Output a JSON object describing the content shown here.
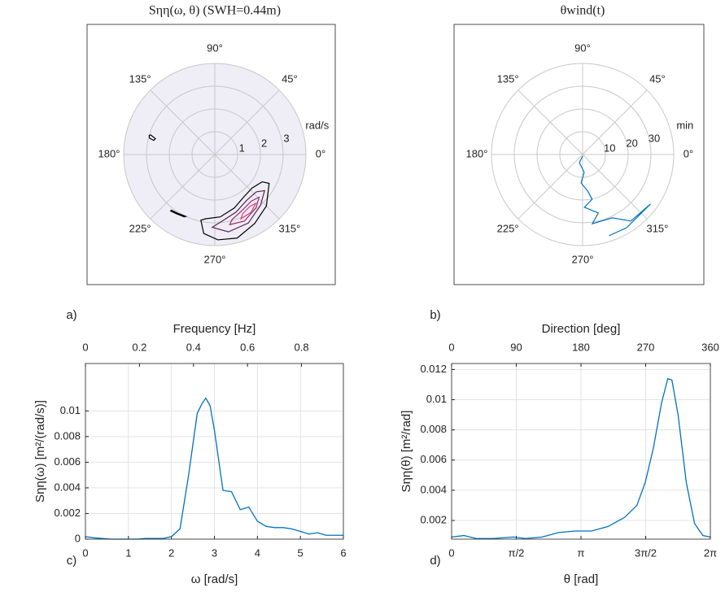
{
  "chart_data": [
    {
      "type": "contour",
      "title": "Sηη(ω, θ) (SWH=0.44m)",
      "panel_label": "a)",
      "rlim": [
        0,
        4
      ],
      "rticks": [
        1,
        2,
        3
      ],
      "r_unit": "rad/s",
      "background": "#efedf6",
      "theta_ticks": [
        {
          "value": 0,
          "label": "0°"
        },
        {
          "value": 45,
          "label": "45°"
        },
        {
          "value": 90,
          "label": "90°"
        },
        {
          "value": 135,
          "label": "135°"
        },
        {
          "value": 180,
          "label": "180°"
        },
        {
          "value": 225,
          "label": "225°"
        },
        {
          "value": 270,
          "label": "270°"
        },
        {
          "value": 315,
          "label": "315°"
        }
      ],
      "contours": [
        {
          "color": "#000000",
          "theta": [
            258,
            262,
            272,
            285,
            300,
            315,
            332,
            330,
            318,
            305,
            290,
            275,
            262
          ],
          "r": [
            2.95,
            3.5,
            3.75,
            3.8,
            3.5,
            3.2,
            2.7,
            2.4,
            2.2,
            2.25,
            2.5,
            2.75,
            2.85
          ]
        },
        {
          "color": "#5a2450",
          "theta": [
            268,
            280,
            296,
            312,
            324,
            318,
            305,
            290,
            276
          ],
          "r": [
            3.2,
            3.45,
            3.35,
            3.0,
            2.7,
            2.45,
            2.45,
            2.7,
            2.95
          ]
        },
        {
          "color": "#9a2d6c",
          "theta": [
            282,
            294,
            308,
            316,
            308,
            295,
            285
          ],
          "r": [
            3.15,
            3.2,
            2.95,
            2.7,
            2.6,
            2.75,
            2.95
          ]
        },
        {
          "color": "#e0407a",
          "theta": [
            292,
            302,
            310,
            304,
            295
          ],
          "r": [
            3.05,
            3.0,
            2.8,
            2.75,
            2.88
          ]
        },
        {
          "color": "#000000",
          "theta": [
            163,
            165,
            167,
            166,
            164
          ],
          "r": [
            2.95,
            2.7,
            2.75,
            2.95,
            3.0
          ]
        },
        {
          "color": "#000000",
          "theta": [
            232,
            238,
            245,
            244,
            237,
            232
          ],
          "r": [
            3.1,
            3.05,
            3.0,
            3.05,
            3.1,
            3.15
          ]
        }
      ]
    },
    {
      "type": "polar",
      "title": "θwind(t)",
      "panel_label": "b)",
      "rlim": [
        0,
        40
      ],
      "rticks": [
        10,
        20,
        30
      ],
      "r_unit": "min",
      "theta_ticks": [
        {
          "value": 0,
          "label": "0°"
        },
        {
          "value": 45,
          "label": "45°"
        },
        {
          "value": 90,
          "label": "90°"
        },
        {
          "value": 135,
          "label": "135°"
        },
        {
          "value": 180,
          "label": "180°"
        },
        {
          "value": 225,
          "label": "225°"
        },
        {
          "value": 270,
          "label": "270°"
        },
        {
          "value": 315,
          "label": "315°"
        }
      ],
      "series": [
        {
          "color": "#0072bd",
          "theta": [
            270,
            248,
            275,
            267,
            278,
            282,
            272,
            285,
            278,
            295,
            306,
            324,
            301,
            288
          ],
          "r": [
            0.7,
            3.8,
            7.9,
            12.5,
            16.2,
            20.1,
            23.2,
            26.6,
            30.7,
            30.7,
            36.1,
            36.9,
            37.5,
            37.5
          ]
        }
      ]
    },
    {
      "type": "line",
      "panel_label": "c)",
      "xlabel": "ω [rad/s]",
      "ylabel": "Sηη(ω) [m²/(rad/s)]",
      "x2label": "Frequency [Hz]",
      "grid": true,
      "xlim": [
        0,
        6
      ],
      "xticks": [
        0,
        1,
        2,
        3,
        4,
        5,
        6
      ],
      "x2lim": [
        0,
        0.955
      ],
      "x2ticks": [
        0,
        0.2,
        0.4,
        0.6,
        0.8
      ],
      "ylim": [
        0,
        0.0137
      ],
      "yticks": [
        0,
        0.002,
        0.004,
        0.006,
        0.008,
        0.01
      ],
      "x": [
        0,
        0.2,
        0.4,
        0.6,
        0.8,
        1.0,
        1.2,
        1.4,
        1.6,
        1.8,
        2.0,
        2.2,
        2.4,
        2.6,
        2.7,
        2.8,
        2.9,
        3.0,
        3.2,
        3.4,
        3.6,
        3.8,
        4.0,
        4.2,
        4.4,
        4.6,
        4.8,
        5.0,
        5.2,
        5.4,
        5.6,
        5.8,
        6.0
      ],
      "series": [
        {
          "color": "#0072bd",
          "values": [
            0.0002,
            0.0001,
            5e-05,
            0,
            0,
            0,
            0,
            5e-05,
            5e-05,
            5e-05,
            0.0002,
            0.0008,
            0.005,
            0.0098,
            0.0105,
            0.011,
            0.0104,
            0.0085,
            0.0038,
            0.0037,
            0.0023,
            0.0025,
            0.0014,
            0.001,
            0.0009,
            0.0009,
            0.0008,
            0.0006,
            0.0004,
            0.0005,
            0.0003,
            0.0003,
            0.0003
          ]
        }
      ]
    },
    {
      "type": "line",
      "panel_label": "d)",
      "xlabel": "θ [rad]",
      "ylabel": "Sηη(θ) [m²/rad]",
      "x2label": "Direction [deg]",
      "grid": true,
      "xlim": [
        0,
        6.2832
      ],
      "xticks": [
        0,
        {
          "value": 1.5708,
          "label": "π/2"
        },
        {
          "value": 3.1416,
          "label": "π"
        },
        {
          "value": 4.7124,
          "label": "3π/2"
        },
        {
          "value": 6.2832,
          "label": "2π"
        }
      ],
      "x2lim": [
        0,
        360
      ],
      "x2ticks": [
        0,
        90,
        180,
        270,
        360
      ],
      "ylim": [
        0.00076,
        0.0124
      ],
      "yticks": [
        0.002,
        0.004,
        0.006,
        0.008,
        0.01,
        0.012
      ],
      "x": [
        0,
        0.3,
        0.6,
        1.0,
        1.5,
        1.8,
        2.2,
        2.6,
        3.0,
        3.4,
        3.8,
        4.2,
        4.5,
        4.7,
        4.9,
        5.1,
        5.25,
        5.35,
        5.5,
        5.7,
        5.9,
        6.1,
        6.28
      ],
      "series": [
        {
          "color": "#0072bd",
          "values": [
            0.0009,
            0.001,
            0.0008,
            0.0008,
            0.0009,
            0.0008,
            0.0009,
            0.0012,
            0.0013,
            0.0013,
            0.0016,
            0.0022,
            0.003,
            0.0045,
            0.0068,
            0.0098,
            0.0114,
            0.0113,
            0.009,
            0.0045,
            0.0018,
            0.001,
            0.0009
          ]
        }
      ]
    }
  ]
}
